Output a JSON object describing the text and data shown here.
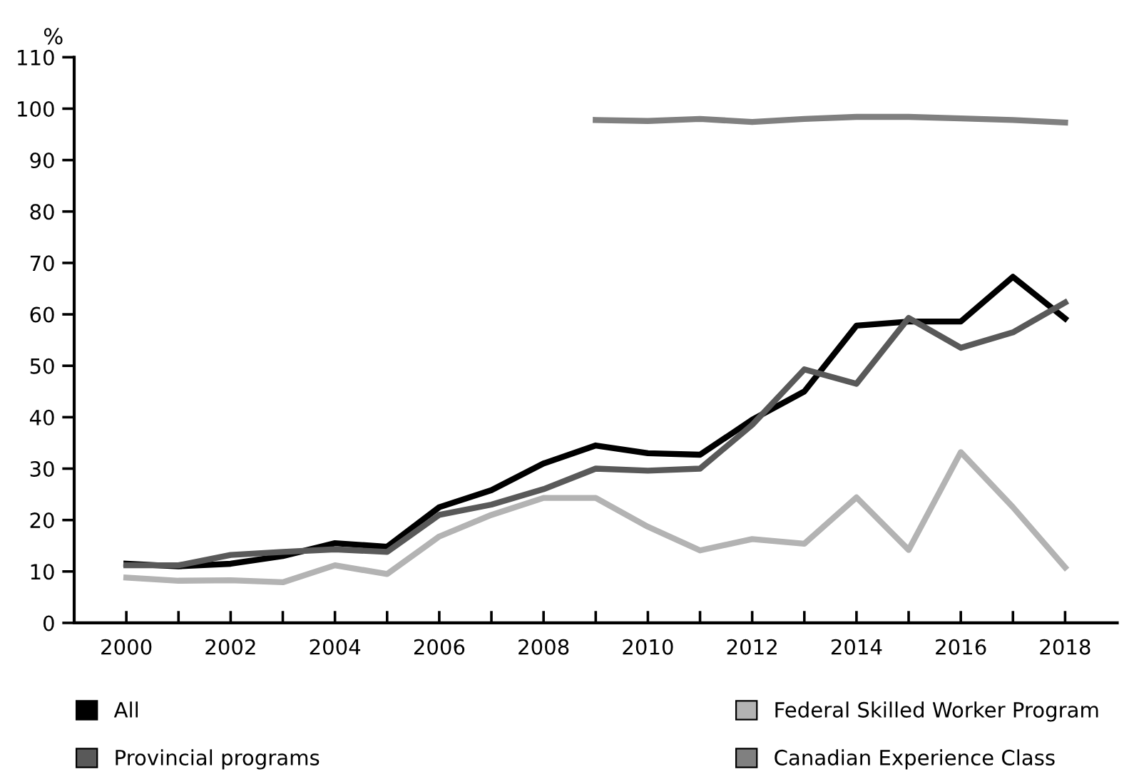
{
  "chart_data": {
    "type": "line",
    "ylabel": "%",
    "x": [
      2000,
      2001,
      2002,
      2003,
      2004,
      2005,
      2006,
      2007,
      2008,
      2009,
      2010,
      2011,
      2012,
      2013,
      2014,
      2015,
      2016,
      2017,
      2018
    ],
    "series": [
      {
        "name": "All",
        "color": "#000000",
        "values": [
          11.5,
          11,
          11.5,
          13,
          15.5,
          14.8,
          22.5,
          25.8,
          31,
          34.5,
          33,
          32.7,
          39.5,
          45,
          57.8,
          58.6,
          58.6,
          67.3,
          59.2
        ]
      },
      {
        "name": "Federal Skilled Worker Program",
        "color": "#b3b3b3",
        "values": [
          8.8,
          8.2,
          8.3,
          7.9,
          11.2,
          9.5,
          16.8,
          21,
          24.3,
          24.3,
          18.7,
          14.1,
          16.3,
          15.4,
          24.4,
          14.2,
          33.2,
          22.5,
          10.8
        ]
      },
      {
        "name": "Provincial programs",
        "color": "#595959",
        "values": [
          11.2,
          11.2,
          13.2,
          13.8,
          14.3,
          13.8,
          21,
          23,
          26,
          30,
          29.6,
          30,
          38.5,
          49.3,
          46.5,
          59.3,
          53.5,
          56.5,
          62.3
        ]
      },
      {
        "name": "Canadian Experience Class",
        "color": "#808080",
        "values": [
          null,
          null,
          null,
          null,
          null,
          null,
          null,
          null,
          null,
          97.8,
          97.6,
          98,
          97.4,
          98,
          98.4,
          98.4,
          98.1,
          97.8,
          97.3
        ]
      }
    ],
    "xlim": [
      1999,
      2019
    ],
    "xticks": [
      2000,
      {
        "value": 2001,
        "label": null
      },
      2002,
      {
        "value": 2003,
        "label": null
      },
      2004,
      {
        "value": 2005,
        "label": null
      },
      2006,
      {
        "value": 2007,
        "label": null
      },
      2008,
      {
        "value": 2009,
        "label": null
      },
      2010,
      {
        "value": 2011,
        "label": null
      },
      2012,
      {
        "value": 2013,
        "label": null
      },
      2014,
      {
        "value": 2015,
        "label": null
      },
      2016,
      {
        "value": 2017,
        "label": null
      },
      2018
    ],
    "ylim": [
      0,
      110
    ],
    "yticks": [
      0,
      10,
      20,
      30,
      40,
      50,
      60,
      70,
      80,
      90,
      100,
      110
    ],
    "grid": false,
    "legend": "bottom",
    "marker": "none",
    "line_style": "solid"
  }
}
